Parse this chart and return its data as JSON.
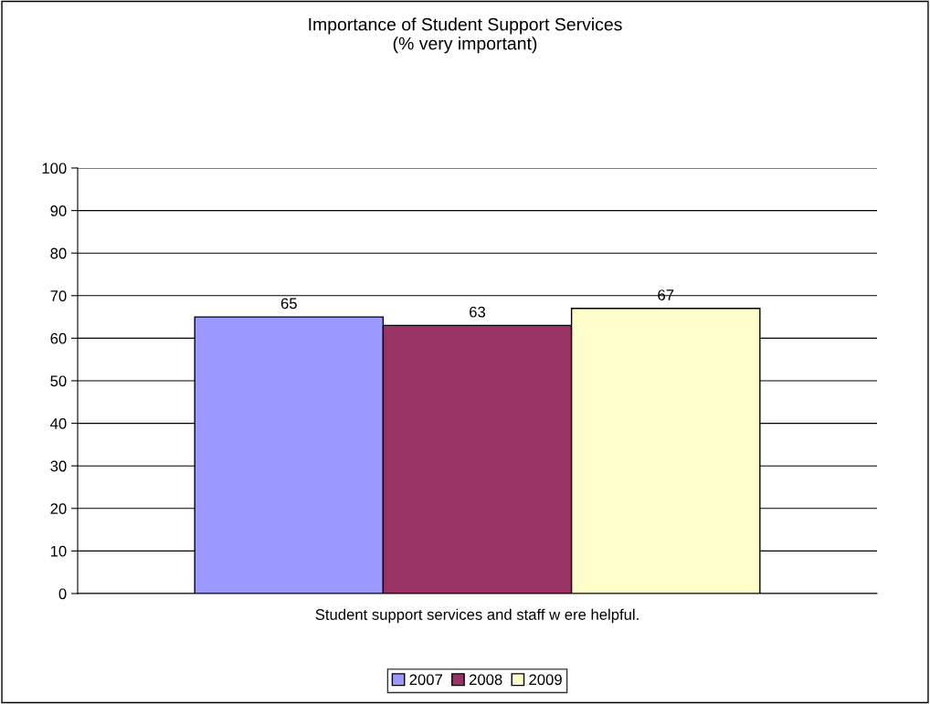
{
  "chart_data": {
    "type": "bar",
    "title": "Importance of Student Support Services\n(% very important)",
    "categories": [
      "Student support services and staff w ere helpful."
    ],
    "series": [
      {
        "name": "2007",
        "color": "#9999ff",
        "values": [
          65
        ]
      },
      {
        "name": "2008",
        "color": "#993366",
        "values": [
          63
        ]
      },
      {
        "name": "2009",
        "color": "#ffffcc",
        "values": [
          67
        ]
      }
    ],
    "ylim": [
      0,
      100
    ],
    "yticks": [
      0,
      10,
      20,
      30,
      40,
      50,
      60,
      70,
      80,
      90,
      100
    ],
    "grid": "y",
    "legend": "bottom",
    "data_labels": true
  }
}
